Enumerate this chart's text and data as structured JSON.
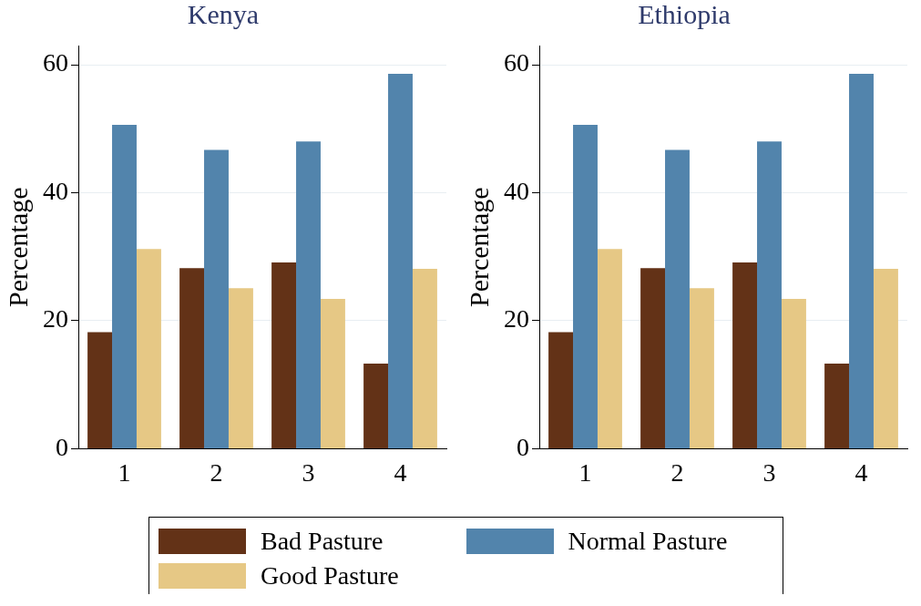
{
  "chart_data": [
    {
      "type": "bar",
      "title": "Kenya",
      "ylabel": "Percentage",
      "categories": [
        "1",
        "2",
        "3",
        "4"
      ],
      "ylim": [
        0,
        63
      ],
      "yticks": [
        0,
        20,
        40,
        60
      ],
      "grid": "y",
      "legend": "bottom",
      "series": [
        {
          "name": "Bad Pasture",
          "color": "#633217",
          "values": [
            18.2,
            28.2,
            29.1,
            13.3
          ]
        },
        {
          "name": "Normal Pasture",
          "color": "#5284ac",
          "values": [
            50.6,
            46.7,
            48.0,
            58.6
          ]
        },
        {
          "name": "Good Pasture",
          "color": "#e6c885",
          "values": [
            31.2,
            25.1,
            23.4,
            28.1
          ]
        }
      ]
    },
    {
      "type": "bar",
      "title": "Ethiopia",
      "ylabel": "Percentage",
      "categories": [
        "1",
        "2",
        "3",
        "4"
      ],
      "ylim": [
        0,
        63
      ],
      "yticks": [
        0,
        20,
        40,
        60
      ],
      "grid": "y",
      "series": [
        {
          "color": "#633217",
          "values": [
            18.2,
            28.2,
            29.1,
            13.3
          ]
        },
        {
          "color": "#5284ac",
          "values": [
            50.6,
            46.7,
            48.0,
            58.6
          ]
        },
        {
          "color": "#e6c885",
          "values": [
            31.2,
            25.1,
            23.4,
            28.1
          ]
        }
      ]
    }
  ]
}
